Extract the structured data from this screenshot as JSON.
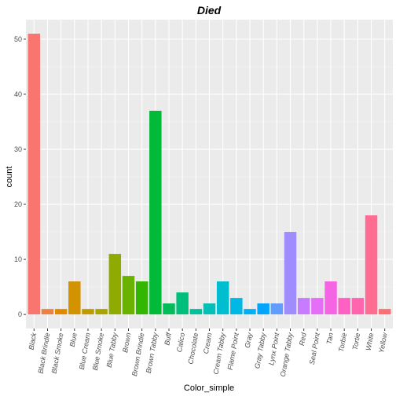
{
  "chart_data": {
    "type": "bar",
    "title": "Died",
    "xlabel": "Color_simple",
    "ylabel": "count",
    "ylim": [
      -2.55,
      53.55
    ],
    "yticks": [
      0,
      10,
      20,
      30,
      40,
      50
    ],
    "grid": true,
    "legend": "none",
    "categories": [
      "Black",
      "Black Brindle",
      "Black Smoke",
      "Blue",
      "Blue Cream",
      "Blue Smoke",
      "Blue Tabby",
      "Brown",
      "Brown Brindle",
      "Brown Tabby",
      "Buff",
      "Calico",
      "Chocolate",
      "Cream",
      "Cream Tabby",
      "Flame Point",
      "Gray",
      "Gray Tabby",
      "Lynx Point",
      "Orange Tabby",
      "Red",
      "Seal Point",
      "Tan",
      "Torbie",
      "Tortie",
      "White",
      "Yellow"
    ],
    "values": [
      51,
      1,
      1,
      6,
      1,
      1,
      11,
      7,
      6,
      37,
      2,
      4,
      1,
      2,
      6,
      3,
      1,
      2,
      2,
      15,
      3,
      3,
      6,
      3,
      3,
      18,
      1
    ],
    "colors": [
      "#F8766D",
      "#EE8043",
      "#E38900",
      "#D39200",
      "#C09B00",
      "#A9A400",
      "#8FAA00",
      "#6BB100",
      "#32B600",
      "#00BA38",
      "#00BC59",
      "#00BF7D",
      "#00C19C",
      "#00C0B7",
      "#00BDD0",
      "#00B8E5",
      "#00B0F6",
      "#00A5FF",
      "#619CFF",
      "#9F8CFF",
      "#C77CFF",
      "#E46FF6",
      "#F564E3",
      "#FF61C3",
      "#FF65AE",
      "#FF6C91",
      "#FD6F70"
    ]
  }
}
